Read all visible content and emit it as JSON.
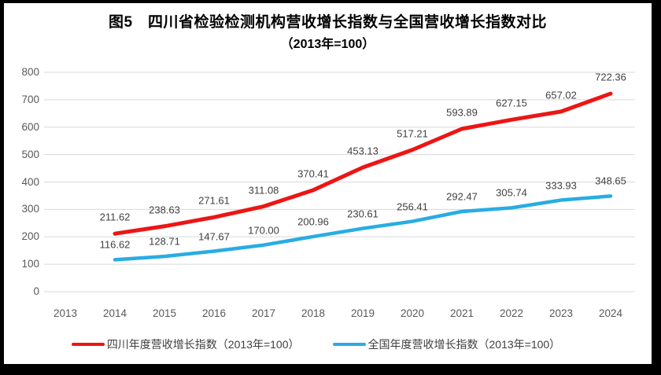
{
  "chart_data": {
    "type": "line",
    "title": "图5　四川省检验检测机构营收增长指数与全国营收增长指数对比",
    "subtitle": "（2013年=100）",
    "categories": [
      "2013",
      "2014",
      "2015",
      "2016",
      "2017",
      "2018",
      "2019",
      "2020",
      "2021",
      "2022",
      "2023",
      "2024"
    ],
    "series": [
      {
        "name": "四川年度营收增长指数（2013年=100）",
        "color": "#ed1515",
        "values": [
          null,
          211.62,
          238.63,
          271.61,
          311.08,
          370.41,
          453.13,
          517.21,
          593.89,
          627.15,
          657.02,
          722.36
        ]
      },
      {
        "name": "全国年度营收增长指数（2013年=100）",
        "color": "#29ace3",
        "values": [
          null,
          116.62,
          128.71,
          147.67,
          170.0,
          200.96,
          230.61,
          256.41,
          292.47,
          305.74,
          333.93,
          348.65
        ]
      }
    ],
    "ylim": [
      0,
      800
    ],
    "ytick_interval": 100,
    "grid": true,
    "legend_position": "bottom",
    "data_labels": true,
    "colors": {
      "gridline": "#d9d9d9",
      "tick_text": "#595959",
      "data_label_text": "#404040",
      "background": "#ffffff",
      "frame_border": "#000000"
    }
  }
}
